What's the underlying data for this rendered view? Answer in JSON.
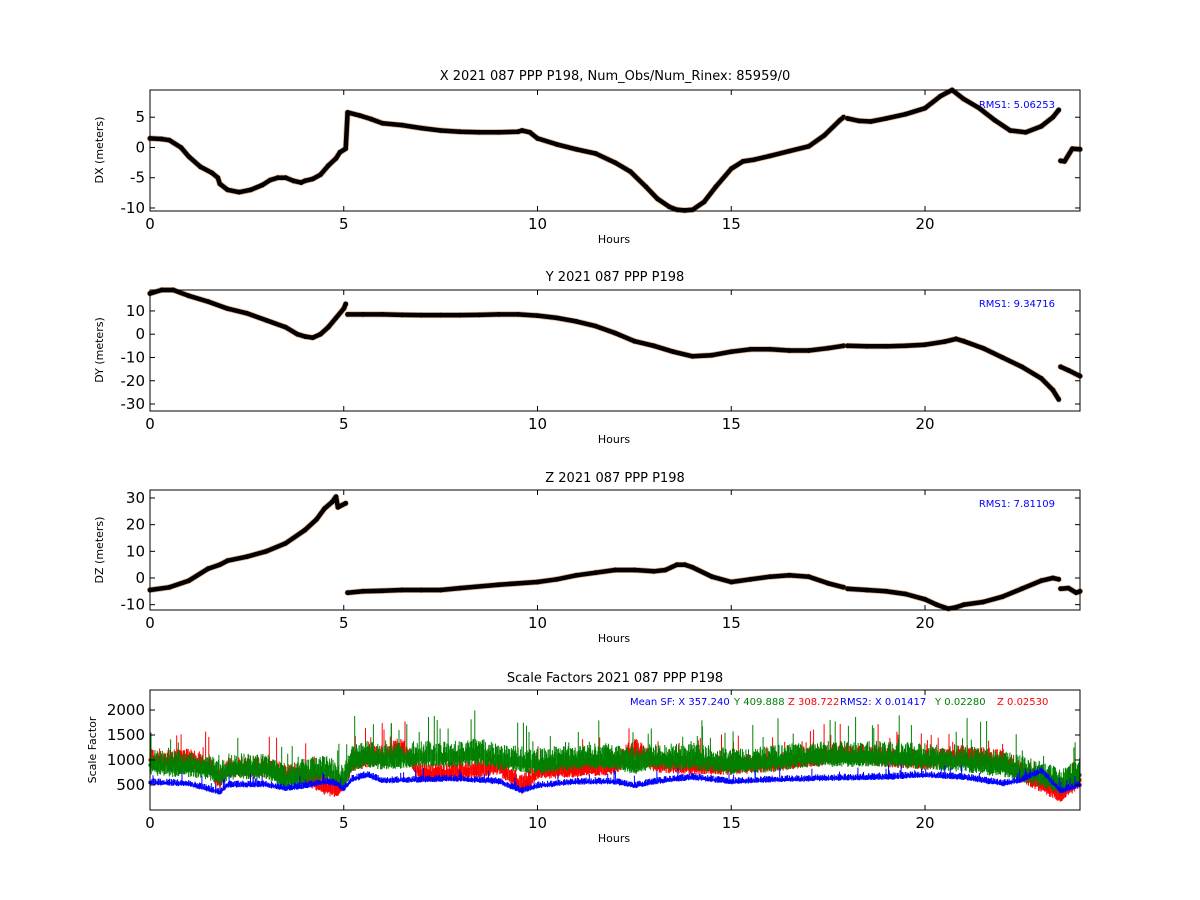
{
  "chart_data": [
    {
      "type": "scatter",
      "title": "X 2021 087 PPP  P198, Num_Obs/Num_Rinex: 85959/0",
      "xlabel": "Hours",
      "ylabel": "DX (meters)",
      "xlim": [
        0,
        24
      ],
      "ylim": [
        -10.5,
        9.5
      ],
      "xticks": [
        0,
        5,
        10,
        15,
        20
      ],
      "yticks": [
        -10,
        -5,
        0,
        5
      ],
      "annotations": [
        {
          "text": "RMS1:  5.06253",
          "color": "#0000ff"
        }
      ],
      "series": [
        {
          "color": "#000000",
          "x": [
            0,
            0.3,
            0.5,
            0.8,
            1.0,
            1.3,
            1.6,
            1.75,
            1.8,
            2.0,
            2.3,
            2.6,
            2.9,
            3.1,
            3.3,
            3.5,
            3.7,
            3.9,
            4.0,
            4.2,
            4.4,
            4.6,
            4.8,
            4.9,
            5.05,
            5.1,
            5.4,
            5.7,
            6.0,
            6.5,
            7.0,
            7.5,
            8.0,
            8.5,
            9.0,
            9.5,
            9.6,
            9.8,
            10.0,
            10.5,
            11.0,
            11.5,
            12.0,
            12.4,
            12.8,
            13.1,
            13.4,
            13.6,
            13.8,
            14.0,
            14.3,
            14.6,
            15.0,
            15.3,
            15.6,
            16.0,
            16.5,
            17.0,
            17.4,
            17.8,
            17.9
          ],
          "y": [
            1.5,
            1.4,
            1.2,
            0,
            -1.5,
            -3.2,
            -4.2,
            -5.0,
            -6.0,
            -7.0,
            -7.4,
            -7.0,
            -6.2,
            -5.4,
            -5.0,
            -5.0,
            -5.5,
            -5.8,
            -5.5,
            -5.2,
            -4.5,
            -3.0,
            -1.8,
            -0.8,
            -0.2,
            5.8,
            5.3,
            4.7,
            4.0,
            3.7,
            3.2,
            2.8,
            2.6,
            2.5,
            2.5,
            2.6,
            2.8,
            2.5,
            1.5,
            0.5,
            -0.3,
            -1.0,
            -2.5,
            -4.0,
            -6.5,
            -8.5,
            -9.8,
            -10.3,
            -10.4,
            -10.3,
            -9.0,
            -6.5,
            -3.5,
            -2.3,
            -2.0,
            -1.4,
            -0.6,
            0.2,
            2.0,
            4.5,
            5.0
          ]
        },
        {
          "color": "#000000",
          "x": [
            18.0,
            18.3,
            18.6,
            19.0,
            19.5,
            20.0,
            20.4,
            20.7,
            21.0,
            21.4,
            21.8,
            22.2,
            22.6,
            23.0,
            23.3,
            23.45
          ],
          "y": [
            4.8,
            4.4,
            4.3,
            4.8,
            5.5,
            6.5,
            8.5,
            9.5,
            8.0,
            6.5,
            4.5,
            2.8,
            2.5,
            3.5,
            5.0,
            6.2
          ]
        },
        {
          "color": "#000000",
          "x": [
            23.5,
            23.6,
            23.8,
            24.0
          ],
          "y": [
            -2.2,
            -2.3,
            -0.2,
            -0.3
          ]
        }
      ]
    },
    {
      "type": "scatter",
      "title": "Y 2021 087 PPP  P198",
      "xlabel": "Hours",
      "ylabel": "DY (meters)",
      "xlim": [
        0,
        24
      ],
      "ylim": [
        -33,
        19
      ],
      "xticks": [
        0,
        5,
        10,
        15,
        20
      ],
      "yticks": [
        -30,
        -20,
        -10,
        0,
        10
      ],
      "annotations": [
        {
          "text": "RMS1:  9.34716",
          "color": "#0000ff"
        }
      ],
      "series": [
        {
          "color": "#000000",
          "x": [
            0,
            0.3,
            0.6,
            1.0,
            1.5,
            2.0,
            2.5,
            3.0,
            3.5,
            3.8,
            4.0,
            4.2,
            4.4,
            4.6,
            4.8,
            5.0,
            5.05
          ],
          "y": [
            17.5,
            19.0,
            19.0,
            16.5,
            14.0,
            11.0,
            9.0,
            6.0,
            3.0,
            0,
            -1.0,
            -1.5,
            0,
            3.0,
            7.0,
            11.0,
            13.0
          ]
        },
        {
          "color": "#000000",
          "x": [
            5.1,
            5.5,
            6.0,
            6.5,
            7.0,
            7.5,
            8.0,
            8.5,
            9.0,
            9.5,
            10.0,
            10.5,
            11.0,
            11.5,
            12.0,
            12.5,
            13.0,
            13.5,
            14.0,
            14.5,
            15.0,
            15.5,
            16.0,
            16.5,
            17.0,
            17.5,
            17.9
          ],
          "y": [
            8.5,
            8.5,
            8.5,
            8.3,
            8.2,
            8.2,
            8.2,
            8.3,
            8.5,
            8.5,
            8.0,
            7.0,
            5.5,
            3.5,
            0.5,
            -3.0,
            -5.0,
            -7.5,
            -9.5,
            -9.0,
            -7.5,
            -6.5,
            -6.5,
            -7.0,
            -7.0,
            -6.0,
            -5.0
          ]
        },
        {
          "color": "#000000",
          "x": [
            18.0,
            18.5,
            19.0,
            19.5,
            20.0,
            20.5,
            20.8,
            21.0,
            21.5,
            22.0,
            22.5,
            23.0,
            23.3,
            23.45
          ],
          "y": [
            -5.0,
            -5.2,
            -5.2,
            -5.0,
            -4.5,
            -3.2,
            -2.0,
            -3.0,
            -6.0,
            -10.0,
            -14.0,
            -19.0,
            -24.0,
            -28.0
          ]
        },
        {
          "color": "#000000",
          "x": [
            23.5,
            23.7,
            24.0
          ],
          "y": [
            -14.0,
            -15.5,
            -18.0
          ]
        }
      ]
    },
    {
      "type": "scatter",
      "title": "Z 2021 087 PPP  P198",
      "xlabel": "Hours",
      "ylabel": "DZ (meters)",
      "xlim": [
        0,
        24
      ],
      "ylim": [
        -12,
        33
      ],
      "xticks": [
        0,
        5,
        10,
        15,
        20
      ],
      "yticks": [
        -10,
        0,
        10,
        20,
        30
      ],
      "annotations": [
        {
          "text": "RMS1:  7.81109",
          "color": "#0000ff"
        }
      ],
      "series": [
        {
          "color": "#000000",
          "x": [
            0,
            0.5,
            1.0,
            1.5,
            1.8,
            2.0,
            2.5,
            3.0,
            3.5,
            4.0,
            4.3,
            4.5,
            4.7,
            4.8,
            4.85,
            5.05
          ],
          "y": [
            -4.5,
            -3.5,
            -1.0,
            3.5,
            5.0,
            6.5,
            8.0,
            10.0,
            13.0,
            18.0,
            22.0,
            26.0,
            28.5,
            30.5,
            26.5,
            28.0
          ]
        },
        {
          "color": "#000000",
          "x": [
            5.1,
            5.5,
            6.0,
            6.5,
            7.0,
            7.5,
            8.0,
            9.0,
            10.0,
            10.5,
            11.0,
            11.5,
            12.0,
            12.5,
            13.0,
            13.3,
            13.6,
            13.8,
            14.0,
            14.5,
            15.0,
            15.5,
            16.0,
            16.5,
            17.0,
            17.5,
            17.9
          ],
          "y": [
            -5.5,
            -5.0,
            -4.8,
            -4.5,
            -4.5,
            -4.5,
            -3.8,
            -2.5,
            -1.5,
            -0.5,
            1.0,
            2.0,
            3.0,
            3.0,
            2.5,
            3.0,
            5.0,
            5.0,
            4.0,
            0.5,
            -1.5,
            -0.5,
            0.5,
            1.0,
            0.5,
            -2.0,
            -3.5
          ]
        },
        {
          "color": "#000000",
          "x": [
            18.0,
            18.5,
            19.0,
            19.5,
            20.0,
            20.3,
            20.6,
            20.8,
            21.0,
            21.5,
            22.0,
            22.5,
            23.0,
            23.3,
            23.45
          ],
          "y": [
            -4.0,
            -4.5,
            -5.0,
            -6.0,
            -8.0,
            -10.0,
            -11.5,
            -11.0,
            -10.0,
            -9.0,
            -7.0,
            -4.0,
            -1.0,
            0,
            -0.5
          ]
        },
        {
          "color": "#000000",
          "x": [
            23.5,
            23.7,
            23.9,
            24.0
          ],
          "y": [
            -4.0,
            -3.8,
            -5.5,
            -5.0
          ]
        }
      ]
    },
    {
      "type": "scatter",
      "title": "Scale Factors 2021 087 PPP  P198",
      "xlabel": "Hours",
      "ylabel": "Scale Factor",
      "xlim": [
        0,
        24
      ],
      "ylim": [
        0,
        2400
      ],
      "xticks": [
        0,
        5,
        10,
        15,
        20
      ],
      "yticks": [
        500,
        1000,
        1500,
        2000
      ],
      "annotations": [
        {
          "text": "Mean SF: X 357.240",
          "color": "#0000ff"
        },
        {
          "text": "Y 409.888",
          "color": "#008000"
        },
        {
          "text": "Z 308.722",
          "color": "#ff0000"
        },
        {
          "text": "RMS2: X  0.01417",
          "color": "#0000ff"
        },
        {
          "text": "Y  0.02280",
          "color": "#008000"
        },
        {
          "text": "Z  0.02530",
          "color": "#ff0000"
        }
      ],
      "series": [
        {
          "name": "X",
          "color": "#0000ff",
          "x": [
            0,
            1.0,
            1.8,
            2.0,
            3.0,
            3.5,
            4.0,
            4.5,
            4.8,
            5.0,
            5.2,
            5.6,
            6.0,
            7.0,
            8.0,
            9.0,
            9.6,
            10.0,
            11.0,
            12.0,
            12.5,
            13.0,
            14.0,
            15.0,
            16.0,
            17.0,
            18.0,
            19.0,
            20.0,
            21.0,
            22.0,
            22.5,
            23.0,
            23.5,
            24.0
          ],
          "y": [
            550,
            520,
            350,
            500,
            500,
            430,
            480,
            560,
            520,
            420,
            600,
            700,
            580,
            600,
            620,
            560,
            380,
            480,
            560,
            560,
            480,
            560,
            650,
            560,
            600,
            620,
            640,
            650,
            700,
            650,
            520,
            600,
            780,
            380,
            500
          ]
        },
        {
          "name": "Y",
          "color": "#008000",
          "x": [
            0,
            0.5,
            1.0,
            1.5,
            1.8,
            2.0,
            3.0,
            3.5,
            4.0,
            4.5,
            4.8,
            5.0,
            5.2,
            5.6,
            6.0,
            7.0,
            8.0,
            8.5,
            9.0,
            10.0,
            11.0,
            12.0,
            12.5,
            13.0,
            14.0,
            15.0,
            16.0,
            17.0,
            18.0,
            19.0,
            20.0,
            21.0,
            22.0,
            22.5,
            23.0,
            23.5,
            24.0
          ],
          "y": [
            900,
            850,
            850,
            800,
            650,
            800,
            800,
            600,
            700,
            800,
            650,
            550,
            950,
            1050,
            1000,
            1050,
            1050,
            1100,
            1000,
            900,
            1000,
            1000,
            900,
            1000,
            1000,
            900,
            950,
            1050,
            1050,
            1050,
            1000,
            950,
            850,
            750,
            650,
            500,
            700
          ]
        },
        {
          "name": "Z",
          "color": "#ff0000",
          "x": [
            0,
            0.5,
            1.0,
            1.5,
            1.8,
            2.0,
            3.0,
            3.5,
            4.0,
            4.5,
            4.8,
            5.0,
            5.2,
            5.6,
            6.0,
            6.5,
            7.0,
            8.0,
            9.0,
            9.6,
            10.0,
            11.0,
            12.0,
            12.5,
            13.0,
            14.0,
            15.0,
            16.0,
            17.0,
            18.0,
            19.0,
            20.0,
            21.0,
            22.0,
            22.5,
            23.0,
            23.5,
            24.0
          ],
          "y": [
            1000,
            950,
            1000,
            850,
            550,
            800,
            800,
            700,
            650,
            450,
            400,
            500,
            900,
            1000,
            1050,
            1200,
            700,
            750,
            850,
            450,
            750,
            800,
            850,
            1200,
            900,
            850,
            850,
            900,
            1000,
            1100,
            1000,
            950,
            1050,
            950,
            700,
            500,
            300,
            600
          ]
        }
      ]
    }
  ]
}
